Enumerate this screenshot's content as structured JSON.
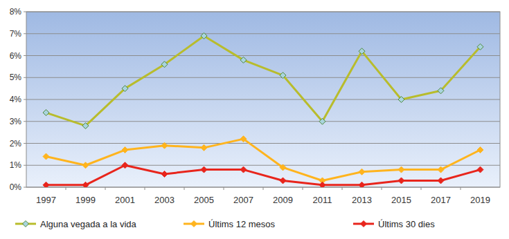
{
  "chart_data": {
    "type": "line",
    "categories": [
      "1997",
      "1999",
      "2001",
      "2003",
      "2005",
      "2007",
      "2009",
      "2011",
      "2013",
      "2015",
      "2017",
      "2019"
    ],
    "series": [
      {
        "name": "Alguna vegada a la vida",
        "color": "#b8bc2c",
        "marker": "diamond",
        "values": [
          3.4,
          2.8,
          4.5,
          5.6,
          6.9,
          5.8,
          5.1,
          3.0,
          6.2,
          4.0,
          4.4,
          6.4
        ]
      },
      {
        "name": "Últims 12 mesos",
        "color": "#ffb41e",
        "marker": "diamond",
        "values": [
          1.4,
          1.0,
          1.7,
          1.9,
          1.8,
          2.2,
          0.9,
          0.3,
          0.7,
          0.8,
          0.8,
          1.7
        ]
      },
      {
        "name": "Últims 30 dies",
        "color": "#e8251c",
        "marker": "diamond",
        "values": [
          0.1,
          0.1,
          1.0,
          0.6,
          0.8,
          0.8,
          0.3,
          0.1,
          0.1,
          0.3,
          0.3,
          0.8
        ]
      }
    ],
    "ylim": [
      0,
      8
    ],
    "yticks": [
      {
        "value": 0,
        "label": "0%"
      },
      {
        "value": 1,
        "label": "1%"
      },
      {
        "value": 2,
        "label": "2%"
      },
      {
        "value": 3,
        "label": "3%"
      },
      {
        "value": 4,
        "label": "4%"
      },
      {
        "value": 5,
        "label": "5%"
      },
      {
        "value": 6,
        "label": "6%"
      },
      {
        "value": 7,
        "label": "7%"
      },
      {
        "value": 8,
        "label": "8%"
      }
    ],
    "grid": true,
    "legend": "bottom"
  }
}
